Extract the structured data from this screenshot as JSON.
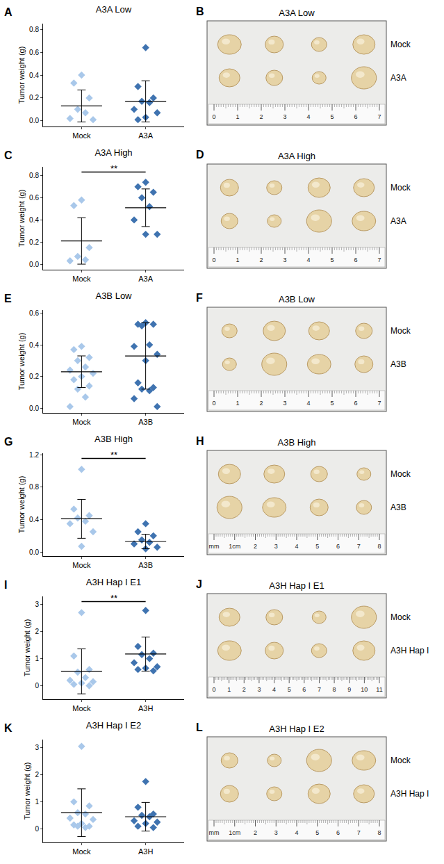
{
  "chart_data": [
    {
      "panel": "A",
      "type": "scatter",
      "title": "A3A Low",
      "y_label": "Tumor weight (g)",
      "categories": [
        "Mock",
        "A3A"
      ],
      "colors": [
        "#a9c8ea",
        "#3f73b0"
      ],
      "marker": "diamond",
      "values": [
        [
          0.4,
          0.33,
          0.2,
          0.1,
          0.07,
          0.02,
          0.01
        ],
        [
          0.64,
          0.3,
          0.2,
          0.17,
          0.16,
          0.1,
          0.07,
          0.03,
          0.01
        ]
      ],
      "means": [
        0.13,
        0.17
      ],
      "sd": [
        0.14,
        0.18
      ],
      "ylim": [
        -0.05,
        0.85
      ],
      "yticks": [
        {
          "value": 0,
          "label": "0.0"
        },
        {
          "value": 0.2,
          "label": "0.2"
        },
        {
          "value": 0.4,
          "label": "0.4"
        },
        {
          "value": 0.6,
          "label": "0.6"
        },
        {
          "value": 0.8,
          "label": "0.8"
        }
      ]
    },
    {
      "panel": "C",
      "type": "scatter",
      "title": "A3A High",
      "y_label": "Tumor weight (g)",
      "categories": [
        "Mock",
        "A3A"
      ],
      "colors": [
        "#a9c8ea",
        "#3f73b0"
      ],
      "marker": "diamond",
      "values": [
        [
          0.58,
          0.53,
          0.15,
          0.07,
          0.04,
          0.03
        ],
        [
          0.74,
          0.7,
          0.65,
          0.6,
          0.52,
          0.4,
          0.27,
          0.27
        ]
      ],
      "means": [
        0.21,
        0.51
      ],
      "sd": [
        0.21,
        0.17
      ],
      "ylim": [
        -0.05,
        0.88
      ],
      "yticks": [
        {
          "value": 0,
          "label": "0.0"
        },
        {
          "value": 0.2,
          "label": "0.2"
        },
        {
          "value": 0.4,
          "label": "0.4"
        },
        {
          "value": 0.6,
          "label": "0.6"
        },
        {
          "value": 0.8,
          "label": "0.8"
        }
      ],
      "significance": "**"
    },
    {
      "panel": "E",
      "type": "scatter",
      "title": "A3B Low",
      "y_label": "Tumor weight (g)",
      "categories": [
        "Mock",
        "A3B"
      ],
      "colors": [
        "#a9c8ea",
        "#3f73b0"
      ],
      "marker": "diamond",
      "values": [
        [
          0.39,
          0.37,
          0.32,
          0.3,
          0.26,
          0.24,
          0.22,
          0.2,
          0.18,
          0.14,
          0.12,
          0.07,
          0.01
        ],
        [
          0.54,
          0.53,
          0.53,
          0.52,
          0.4,
          0.39,
          0.34,
          0.3,
          0.16,
          0.13,
          0.12,
          0.11,
          0.06,
          0.01
        ]
      ],
      "means": [
        0.23,
        0.33
      ],
      "sd": [
        0.1,
        0.21
      ],
      "ylim": [
        -0.03,
        0.62
      ],
      "yticks": [
        {
          "value": 0,
          "label": "0.0"
        },
        {
          "value": 0.2,
          "label": "0.2"
        },
        {
          "value": 0.4,
          "label": "0.4"
        },
        {
          "value": 0.6,
          "label": "0.6"
        }
      ]
    },
    {
      "panel": "G",
      "type": "scatter",
      "title": "A3B High",
      "y_label": "Tumor weight (g)",
      "categories": [
        "Mock",
        "A3B"
      ],
      "colors": [
        "#a9c8ea",
        "#3f73b0"
      ],
      "marker": "diamond",
      "values": [
        [
          1.02,
          0.53,
          0.45,
          0.42,
          0.38,
          0.35,
          0.25,
          0.07
        ],
        [
          0.35,
          0.25,
          0.2,
          0.15,
          0.12,
          0.1,
          0.06,
          0.04
        ]
      ],
      "means": [
        0.41,
        0.13
      ],
      "sd": [
        0.24,
        0.09
      ],
      "ylim": [
        -0.05,
        1.22
      ],
      "yticks": [
        {
          "value": 0,
          "label": "0.0"
        },
        {
          "value": 0.4,
          "label": "0.4"
        },
        {
          "value": 0.8,
          "label": "0.8"
        },
        {
          "value": 1.2,
          "label": "1.2"
        }
      ],
      "significance": "**"
    },
    {
      "panel": "I",
      "type": "scatter",
      "title": "A3H Hap I E1",
      "y_label": "Tumor weight (g)",
      "categories": [
        "Mock",
        "A3H"
      ],
      "colors": [
        "#a9c8ea",
        "#3f73b0"
      ],
      "marker": "diamond",
      "values": [
        [
          2.7,
          1.1,
          0.6,
          0.5,
          0.3,
          0.2,
          0.15,
          0.1,
          0.05,
          0.0
        ],
        [
          2.78,
          1.45,
          1.2,
          1.15,
          1.0,
          0.85,
          0.7,
          0.65,
          0.6,
          0.55
        ]
      ],
      "means": [
        0.53,
        1.17
      ],
      "sd": [
        0.83,
        0.63
      ],
      "ylim": [
        -0.5,
        3.3
      ],
      "yticks": [
        0,
        1,
        2,
        3
      ],
      "significance": "**"
    },
    {
      "panel": "K",
      "type": "scatter",
      "title": "A3H Hap I E2",
      "y_label": "Tumor weight (g)",
      "categories": [
        "Mock",
        "A3H"
      ],
      "colors": [
        "#a9c8ea",
        "#3f73b0"
      ],
      "marker": "diamond",
      "values": [
        [
          3.05,
          1.0,
          0.85,
          0.6,
          0.55,
          0.4,
          0.35,
          0.2,
          0.15,
          0.1,
          0.1,
          0.05
        ],
        [
          1.75,
          0.8,
          0.55,
          0.5,
          0.45,
          0.3,
          0.25,
          0.2,
          0.1,
          0.05
        ]
      ],
      "means": [
        0.6,
        0.45
      ],
      "sd": [
        0.88,
        0.53
      ],
      "ylim": [
        -0.5,
        3.3
      ],
      "yticks": [
        0,
        1,
        2,
        3
      ]
    }
  ],
  "photos": [
    {
      "panel": "B",
      "title": "A3A Low",
      "rows": [
        "Mock",
        "A3A"
      ],
      "ruler": [
        "0",
        "1",
        "2",
        "3",
        "4",
        "5",
        "6",
        "7"
      ]
    },
    {
      "panel": "D",
      "title": "A3A High",
      "rows": [
        "Mock",
        "A3A"
      ],
      "ruler": [
        "0",
        "1",
        "2",
        "3",
        "4",
        "5",
        "6",
        "7"
      ]
    },
    {
      "panel": "F",
      "title": "A3B Low",
      "rows": [
        "Mock",
        "A3B"
      ],
      "ruler": [
        "0",
        "1",
        "2",
        "3",
        "4",
        "5",
        "6",
        "7"
      ]
    },
    {
      "panel": "H",
      "title": "A3B High",
      "rows": [
        "Mock",
        "A3B"
      ],
      "ruler": [
        "mm",
        "1cm",
        "2",
        "3",
        "4",
        "5",
        "6",
        "7",
        "8"
      ]
    },
    {
      "panel": "J",
      "title": "A3H Hap I E1",
      "rows": [
        "Mock",
        "A3H Hap I"
      ],
      "ruler": [
        "0",
        "1",
        "2",
        "3",
        "4",
        "5",
        "6",
        "7",
        "8",
        "9",
        "10",
        "11"
      ]
    },
    {
      "panel": "L",
      "title": "A3H Hap I E2",
      "rows": [
        "Mock",
        "A3H Hap I"
      ],
      "ruler": [
        "mm",
        "1cm",
        "2",
        "3",
        "4",
        "5",
        "6",
        "7",
        "8"
      ]
    }
  ]
}
